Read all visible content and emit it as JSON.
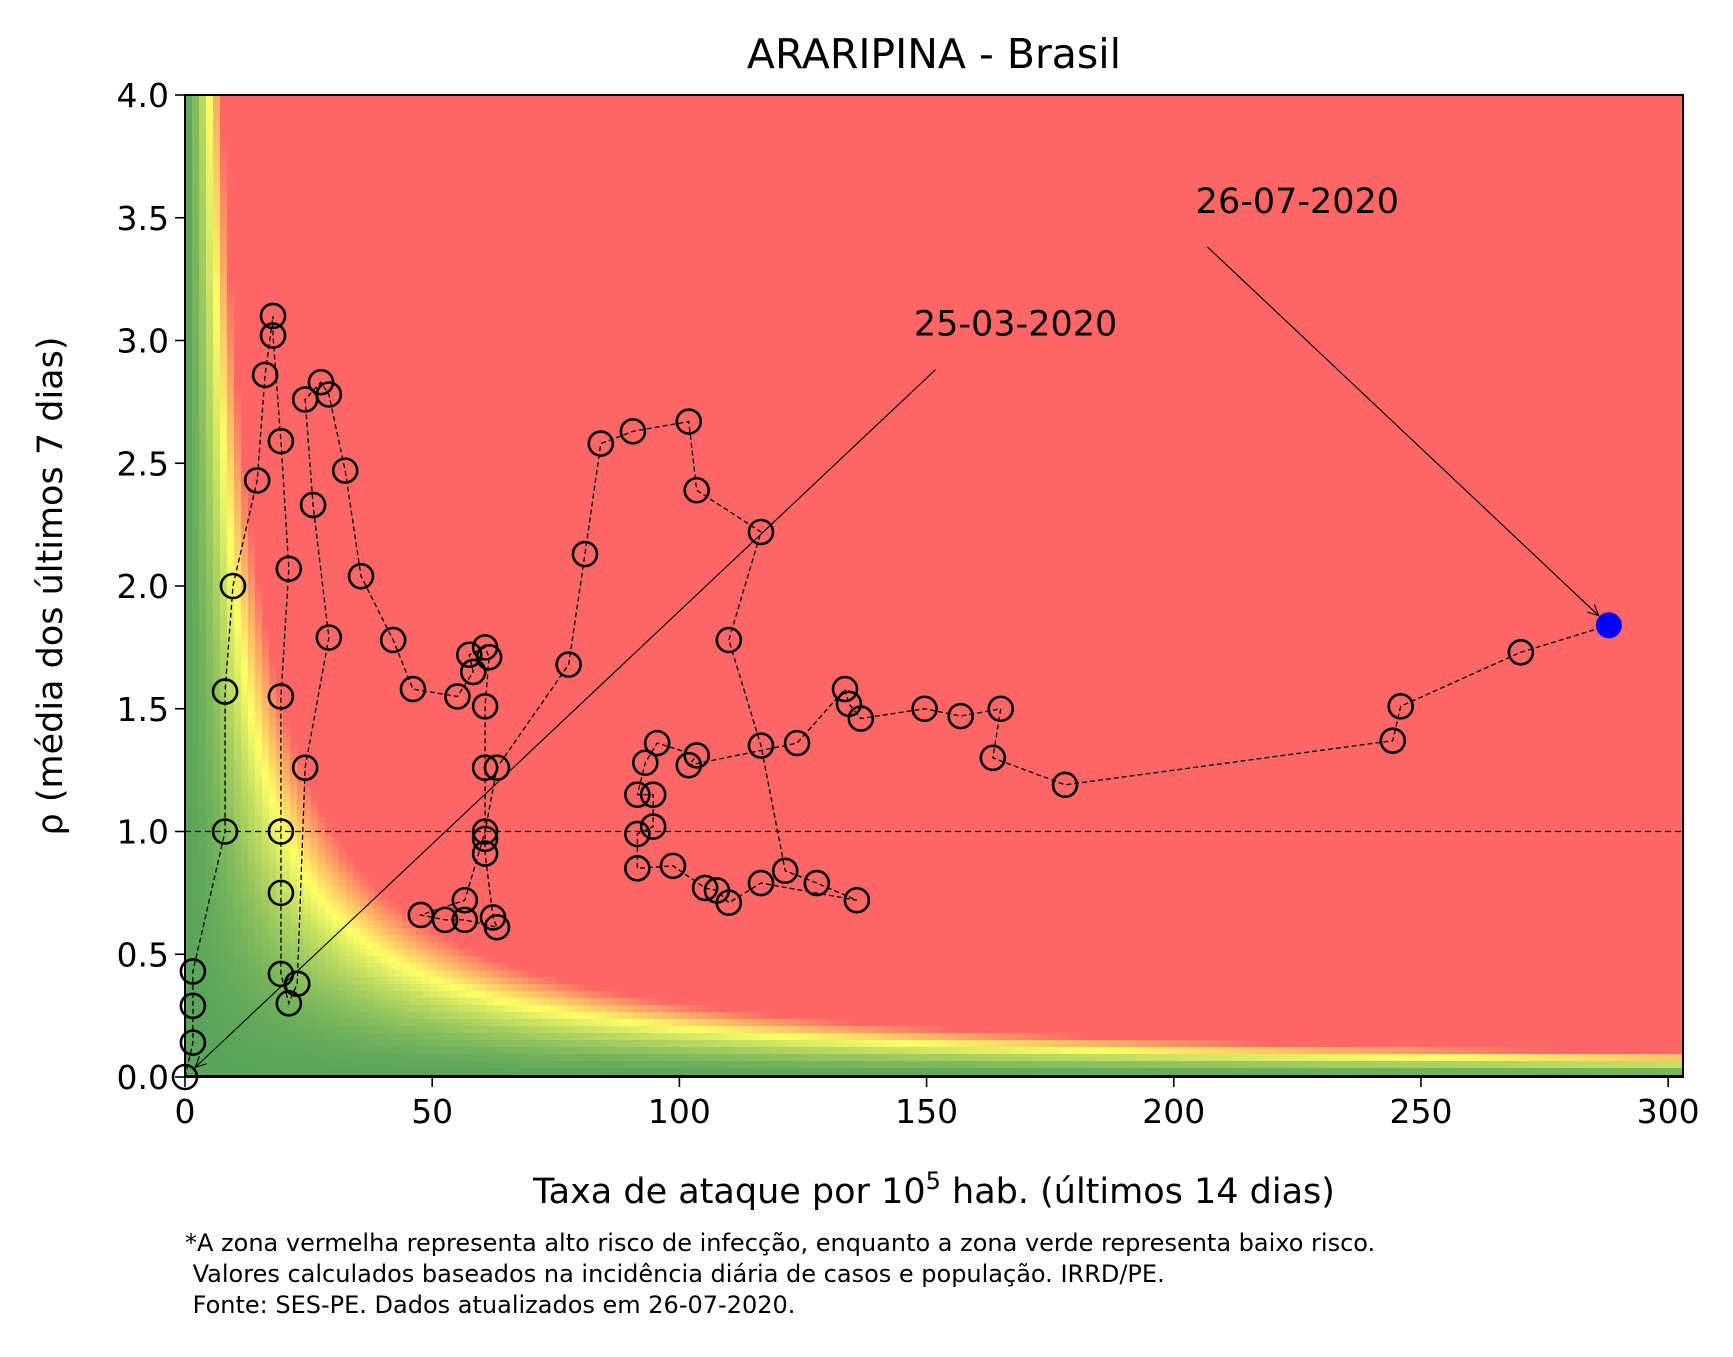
{
  "chart_data": {
    "type": "scatter",
    "title": "ARARIPINA - Brasil",
    "xlabel_main": "Taxa de ataque por 10",
    "xlabel_sup": "5",
    "xlabel_rest": " hab. (últimos 14 dias)",
    "ylabel": "ρ (média dos últimos 7 dias)",
    "xlim": [
      0,
      303
    ],
    "ylim": [
      0,
      4.0
    ],
    "xticks": [
      0,
      50,
      100,
      150,
      200,
      250,
      300
    ],
    "xtick_labels": [
      "0",
      "50",
      "100",
      "150",
      "200",
      "250",
      "300"
    ],
    "yticks": [
      0,
      0.5,
      1.0,
      1.5,
      2.0,
      2.5,
      3.0,
      3.5,
      4.0
    ],
    "ytick_labels": [
      "0.0",
      "0.5",
      "1.0",
      "1.5",
      "2.0",
      "2.5",
      "3.0",
      "3.5",
      "4.0"
    ],
    "grid": false,
    "reference_line_y": 1.0,
    "background": "risk heatmap: red (high risk) where x·ρ is large, yellow transition band, green (low risk) near the origin",
    "colors": {
      "high_risk": "#ff6666",
      "transition": "#ffff66",
      "low_risk": "#5aa55a",
      "marker": "#000000",
      "last_point": "#0000ff"
    },
    "annotations": [
      {
        "text": "25-03-2020",
        "point": [
          0,
          0
        ],
        "text_pos": [
          168,
          3.02
        ]
      },
      {
        "text": "26-07-2020",
        "point": [
          288,
          1.84
        ],
        "text_pos": [
          225,
          3.52
        ]
      }
    ],
    "series": [
      {
        "points": [
          [
            0,
            0
          ],
          [
            1.6,
            0.14
          ],
          [
            1.6,
            0.29
          ],
          [
            1.6,
            0.43
          ],
          [
            8.1,
            1.0
          ],
          [
            8.1,
            1.57
          ],
          [
            9.7,
            2.0
          ],
          [
            14.6,
            2.43
          ],
          [
            16.2,
            2.86
          ],
          [
            17.8,
            3.1
          ],
          [
            17.8,
            3.02
          ],
          [
            19.4,
            2.59
          ],
          [
            21.0,
            2.07
          ],
          [
            19.4,
            1.55
          ],
          [
            19.4,
            1.0
          ],
          [
            19.4,
            0.75
          ],
          [
            19.4,
            0.42
          ],
          [
            21.0,
            0.3
          ],
          [
            22.7,
            0.38
          ],
          [
            24.3,
            1.26
          ],
          [
            29.1,
            1.79
          ],
          [
            25.9,
            2.33
          ],
          [
            24.3,
            2.76
          ],
          [
            27.5,
            2.83
          ],
          [
            29.1,
            2.78
          ],
          [
            32.4,
            2.47
          ],
          [
            35.6,
            2.04
          ],
          [
            42.1,
            1.78
          ],
          [
            46.1,
            1.58
          ],
          [
            55.1,
            1.55
          ],
          [
            58.3,
            1.65
          ],
          [
            57.5,
            1.72
          ],
          [
            60.7,
            1.75
          ],
          [
            61.5,
            1.71
          ],
          [
            60.7,
            1.51
          ],
          [
            60.7,
            1.26
          ],
          [
            60.7,
            0.97
          ],
          [
            60.7,
            0.91
          ],
          [
            62.3,
            0.65
          ],
          [
            63.1,
            0.61
          ],
          [
            56.6,
            0.64
          ],
          [
            52.6,
            0.64
          ],
          [
            47.7,
            0.66
          ],
          [
            56.6,
            0.72
          ],
          [
            60.7,
            1.0
          ],
          [
            63.1,
            1.26
          ],
          [
            77.6,
            1.68
          ],
          [
            80.9,
            2.13
          ],
          [
            84.1,
            2.58
          ],
          [
            90.6,
            2.63
          ],
          [
            101.9,
            2.67
          ],
          [
            103.5,
            2.39
          ],
          [
            116.5,
            2.22
          ],
          [
            110.0,
            1.78
          ],
          [
            116.5,
            1.35
          ],
          [
            121.4,
            0.84
          ],
          [
            127.8,
            0.79
          ],
          [
            135.9,
            0.72
          ],
          [
            116.5,
            0.79
          ],
          [
            110.0,
            0.71
          ],
          [
            107.6,
            0.76
          ],
          [
            105.2,
            0.77
          ],
          [
            98.7,
            0.86
          ],
          [
            91.5,
            0.85
          ],
          [
            91.5,
            0.99
          ],
          [
            94.7,
            1.02
          ],
          [
            94.7,
            1.15
          ],
          [
            91.5,
            1.15
          ],
          [
            93.1,
            1.28
          ],
          [
            95.5,
            1.36
          ],
          [
            103.5,
            1.31
          ],
          [
            101.9,
            1.27
          ],
          [
            123.8,
            1.36
          ],
          [
            133.5,
            1.58
          ],
          [
            134.3,
            1.52
          ],
          [
            136.7,
            1.46
          ],
          [
            149.6,
            1.5
          ],
          [
            156.9,
            1.47
          ],
          [
            165.0,
            1.5
          ],
          [
            163.4,
            1.3
          ],
          [
            178.0,
            1.19
          ],
          [
            244.3,
            1.37
          ],
          [
            245.9,
            1.51
          ],
          [
            270.2,
            1.73
          ],
          [
            288.0,
            1.84
          ]
        ]
      }
    ]
  },
  "footnote": {
    "line1": "*A zona vermelha representa alto risco de infecção, enquanto a zona verde representa baixo risco.",
    "line2": " Valores calculados baseados na incidência diária de casos e população. IRRD/PE.",
    "line3": " Fonte: SES-PE. Dados atualizados em 26-07-2020."
  }
}
